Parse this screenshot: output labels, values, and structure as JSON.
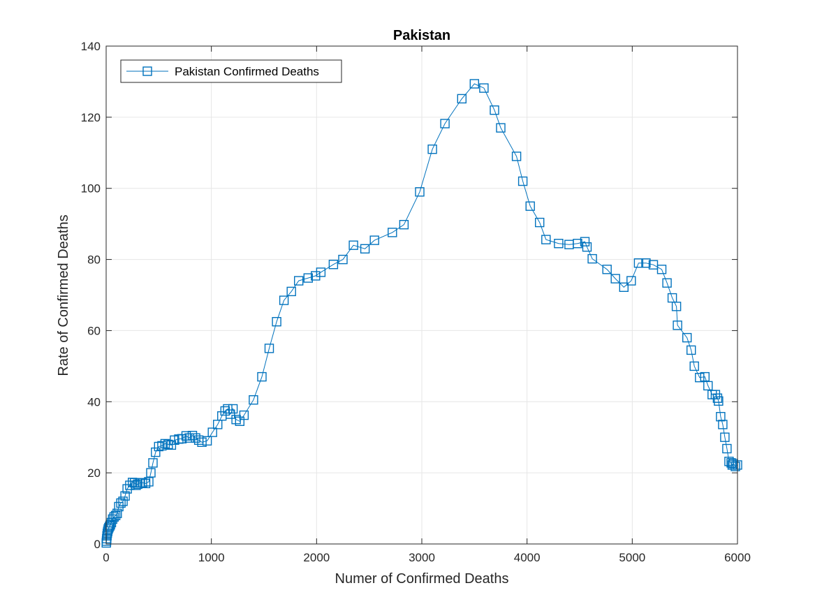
{
  "chart_data": {
    "type": "line",
    "title": "Pakistan",
    "xlabel": "Numer of Confirmed Deaths",
    "ylabel": "Rate of Confirmed Deaths",
    "xlim": [
      0,
      6000
    ],
    "ylim": [
      0,
      140
    ],
    "xticks": [
      0,
      1000,
      2000,
      3000,
      4000,
      5000,
      6000
    ],
    "yticks": [
      0,
      20,
      40,
      60,
      80,
      100,
      120,
      140
    ],
    "xtick_labels": [
      "0",
      "1000",
      "2000",
      "3000",
      "4000",
      "5000",
      "6000"
    ],
    "ytick_labels": [
      "0",
      "20",
      "40",
      "60",
      "80",
      "100",
      "120",
      "140"
    ],
    "grid": true,
    "legend_position": "top-left",
    "colors": {
      "series": "#0072BD",
      "grid": "#e6e6e6",
      "axis": "#262626"
    },
    "series": [
      {
        "name": "Pakistan Confirmed Deaths",
        "marker": "square",
        "x": [
          1,
          3,
          5,
          8,
          11,
          15,
          20,
          26,
          33,
          40,
          50,
          62,
          75,
          90,
          105,
          120,
          140,
          160,
          180,
          200,
          225,
          250,
          270,
          285,
          300,
          320,
          345,
          375,
          405,
          425,
          445,
          470,
          500,
          530,
          560,
          590,
          620,
          650,
          690,
          720,
          760,
          790,
          820,
          850,
          880,
          910,
          960,
          1010,
          1060,
          1100,
          1130,
          1155,
          1180,
          1205,
          1235,
          1270,
          1310,
          1400,
          1480,
          1550,
          1620,
          1690,
          1760,
          1830,
          1920,
          1990,
          2040,
          2160,
          2250,
          2350,
          2460,
          2550,
          2720,
          2830,
          2980,
          3100,
          3220,
          3380,
          3500,
          3590,
          3690,
          3750,
          3900,
          3960,
          4030,
          4120,
          4180,
          4300,
          4400,
          4480,
          4550,
          4570,
          4620,
          4760,
          4840,
          4920,
          4990,
          5060,
          5130,
          5200,
          5280,
          5330,
          5380,
          5420,
          5430,
          5520,
          5560,
          5590,
          5640,
          5690,
          5720,
          5760,
          5790,
          5810,
          5820,
          5840,
          5860,
          5880,
          5900,
          5920,
          5940,
          5950,
          5960,
          5980,
          6000
        ],
        "y": [
          0.3,
          0.8,
          1.5,
          2.3,
          3.0,
          3.6,
          4.2,
          4.6,
          5.0,
          5.4,
          6.0,
          7.0,
          7.6,
          8.0,
          8.6,
          10.5,
          11.5,
          12.0,
          13.5,
          15.5,
          16.5,
          17.3,
          17.2,
          16.5,
          16.8,
          17.2,
          17.2,
          17.0,
          17.5,
          20.0,
          22.8,
          25.8,
          27.4,
          27.6,
          28.2,
          28.0,
          27.8,
          29.2,
          29.5,
          29.6,
          30.4,
          29.8,
          30.5,
          29.8,
          29.2,
          28.6,
          29.0,
          31.4,
          33.6,
          36.0,
          37.4,
          38.0,
          36.5,
          38.0,
          35.0,
          34.5,
          36.2,
          40.5,
          47.0,
          55.0,
          62.5,
          68.5,
          71.0,
          74.0,
          74.8,
          75.4,
          76.4,
          78.6,
          80.0,
          84.0,
          83.0,
          85.4,
          87.6,
          89.8,
          99.0,
          111.0,
          118.2,
          125.2,
          129.4,
          128.2,
          122.0,
          117.0,
          109.0,
          102.0,
          95.0,
          90.4,
          85.6,
          84.5,
          84.2,
          84.5,
          85.0,
          83.5,
          80.2,
          77.2,
          74.6,
          72.2,
          74.0,
          79.0,
          79.0,
          78.5,
          77.2,
          73.4,
          69.2,
          66.8,
          61.5,
          58.0,
          54.5,
          50.0,
          46.8,
          47.0,
          44.5,
          42.0,
          42.0,
          41.0,
          40.2,
          35.8,
          33.6,
          30.0,
          26.8,
          23.2,
          22.8,
          22.2,
          22.6,
          21.8,
          22.2
        ]
      }
    ]
  }
}
